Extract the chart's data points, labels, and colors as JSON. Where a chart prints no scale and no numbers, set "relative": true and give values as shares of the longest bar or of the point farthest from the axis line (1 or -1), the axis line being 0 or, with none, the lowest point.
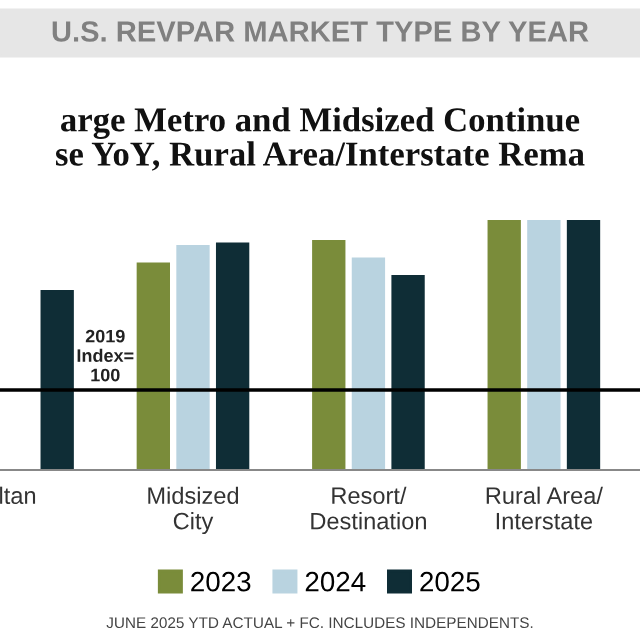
{
  "chart_data": {
    "type": "bar",
    "relative": true,
    "title": "U.S. REVPAR MARKET TYPE BY YEAR",
    "subtitle": "arge Metro and Midsized Continue\nse YoY, Rural Area/Interstate Rema",
    "categories": [
      "ltan",
      "Midsized\nCity",
      "Resort/\nDestination",
      "Rural Area/\nInterstate"
    ],
    "series": [
      {
        "name": "2023",
        "color": "#7a8c3a",
        "values": [
          null,
          0.83,
          0.92,
          1
        ]
      },
      {
        "name": "2024",
        "color": "#b9d3e0",
        "values": [
          null,
          0.9,
          0.85,
          1
        ]
      },
      {
        "name": "2025",
        "color": "#0f2d36",
        "values": [
          0.72,
          0.91,
          0.78,
          1
        ]
      }
    ],
    "ref_lines": [
      {
        "axis": "y",
        "value": 0.32,
        "color": "#000000"
      }
    ],
    "legend": "bottom",
    "annotations": [
      {
        "text": "2019\nIndex=\n100",
        "y": 0.32
      },
      "JUNE 2025 YTD ACTUAL + FC. INCLUDES INDEPENDENTS."
    ]
  }
}
